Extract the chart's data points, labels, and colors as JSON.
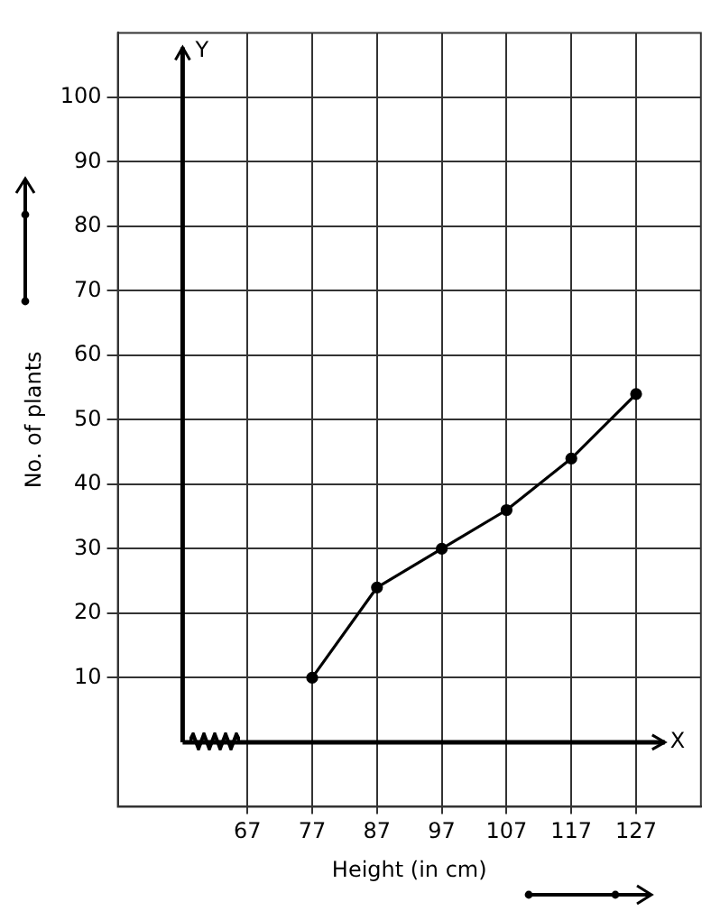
{
  "chart_data": {
    "type": "line",
    "xlabel": "Height (in cm)",
    "ylabel": "No. of plants",
    "x": [
      77,
      87,
      97,
      107,
      117,
      127
    ],
    "series": [
      {
        "color": "#000000",
        "values": [
          10,
          24,
          30,
          36,
          44,
          54
        ]
      }
    ],
    "xlim": [
      47,
      137
    ],
    "xticks": [
      67,
      77,
      87,
      97,
      107,
      117,
      127
    ],
    "ylim": [
      -10,
      110
    ],
    "yticks": [
      10,
      20,
      30,
      40,
      50,
      60,
      70,
      80,
      90,
      100
    ],
    "grid": true,
    "legend": false,
    "marker": "circle",
    "line_style": "solid",
    "ref_lines": [
      {
        "axis": "x",
        "value": 57,
        "label": "Y",
        "color": "#000000"
      },
      {
        "axis": "y",
        "value": 0,
        "label": "X",
        "color": "#000000"
      }
    ]
  }
}
